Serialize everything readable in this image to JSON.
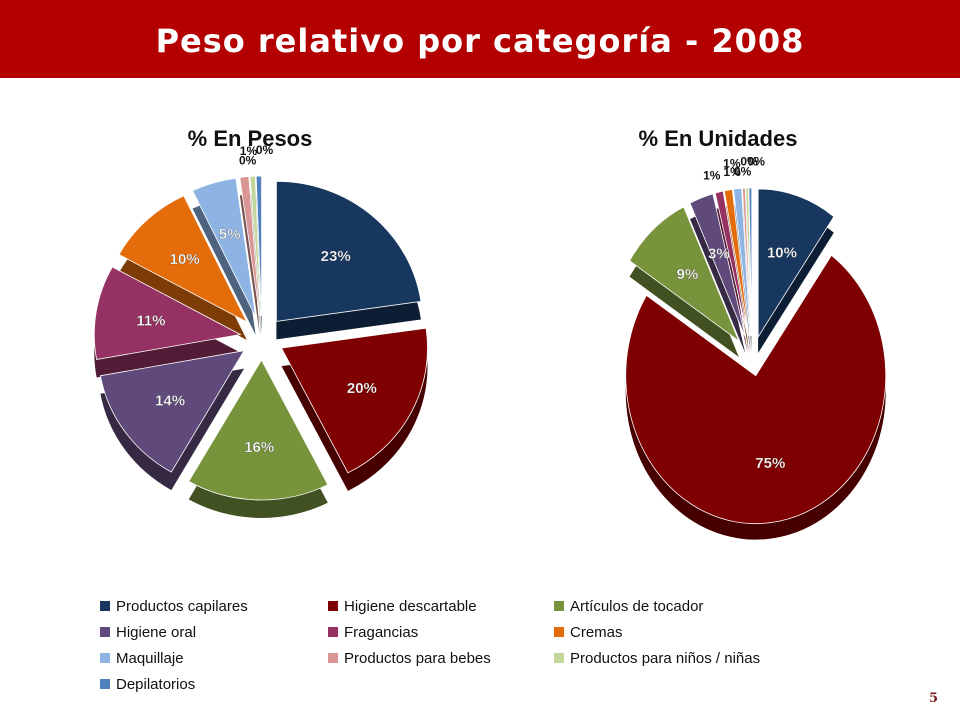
{
  "page": {
    "title": "Peso relativo  por categoría - 2008",
    "page_number": "5"
  },
  "chart_data": [
    {
      "type": "pie",
      "title": "% En Pesos",
      "categories": [
        "Productos capilares",
        "Higiene descartable",
        "Artículos de tocador",
        "Higiene oral",
        "Fragancias",
        "Cremas",
        "Maquillaje",
        "Productos para bebes",
        "Productos para niños / niñas",
        "Depilatorios"
      ],
      "values": [
        23,
        20,
        16,
        14,
        11,
        10,
        5,
        1,
        0,
        0
      ],
      "data_labels": [
        "23%",
        "20%",
        "16%",
        "14%",
        "11%",
        "10%",
        "5%",
        "1%",
        "0%",
        "0%"
      ]
    },
    {
      "type": "pie",
      "title": "% En Unidades",
      "categories": [
        "Productos capilares",
        "Higiene descartable",
        "Artículos de tocador",
        "Higiene oral",
        "Fragancias",
        "Cremas",
        "Maquillaje",
        "Productos para bebes",
        "Productos para niños / niñas",
        "Depilatorios"
      ],
      "values": [
        10,
        75,
        9,
        3,
        1,
        1,
        1,
        0,
        0,
        0
      ],
      "data_labels": [
        "10%",
        "75%",
        "9%",
        "3%",
        "1%",
        "1%",
        "1%",
        "0%",
        "0%",
        "0%"
      ]
    }
  ],
  "legend": {
    "items": [
      {
        "label": "Productos capilares",
        "color": "#17375e"
      },
      {
        "label": "Higiene descartable",
        "color": "#7f0000"
      },
      {
        "label": "Artículos de tocador",
        "color": "#77933c"
      },
      {
        "label": "Higiene oral",
        "color": "#604a7b"
      },
      {
        "label": "Fragancias",
        "color": "#953163"
      },
      {
        "label": "Cremas",
        "color": "#e46c0a"
      },
      {
        "label": "Maquillaje",
        "color": "#8eb4e3"
      },
      {
        "label": "Productos para bebes",
        "color": "#d99694"
      },
      {
        "label": "Productos para niños / niñas",
        "color": "#c3d69b"
      },
      {
        "label": "Depilatorios",
        "color": "#4f81bd"
      }
    ]
  },
  "colors": {
    "header": "#b30000",
    "slices": [
      "#17375e",
      "#7f0000",
      "#77933c",
      "#604a7b",
      "#953163",
      "#e46c0a",
      "#8eb4e3",
      "#d99694",
      "#c3d69b",
      "#4f81bd"
    ]
  }
}
